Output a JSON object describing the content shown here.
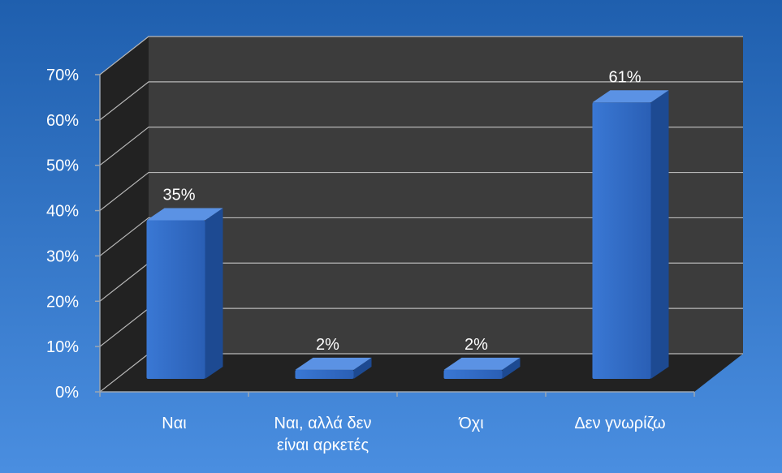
{
  "chart_data": {
    "type": "bar",
    "categories": [
      "Ναι",
      "Ναι, αλλά δεν είναι αρκετές",
      "Όχι",
      "Δεν γνωρίζω"
    ],
    "category_lines": [
      [
        "Ναι"
      ],
      [
        "Ναι, αλλά δεν",
        "είναι αρκετές"
      ],
      [
        "Όχι"
      ],
      [
        "Δεν γνωρίζω"
      ]
    ],
    "values": [
      35,
      2,
      2,
      61
    ],
    "data_labels": [
      "35%",
      "2%",
      "2%",
      "61%"
    ],
    "yticks": [
      "0%",
      "10%",
      "20%",
      "30%",
      "40%",
      "50%",
      "60%",
      "70%"
    ],
    "ylim": [
      0,
      70
    ],
    "title": "",
    "xlabel": "",
    "ylabel": "",
    "grid": true,
    "legend": "none",
    "style": "3d-column",
    "colors": {
      "background_top": "#1f5fae",
      "background_bottom": "#4a8ee0",
      "plot_back_wall": "#3c3c3c",
      "plot_side_wall": "#222222",
      "bar_front": "#2f68c2",
      "bar_top": "#5b92e4",
      "bar_side": "#1d4a92",
      "gridline": "#b8b8b8",
      "text": "#ffffff"
    }
  }
}
